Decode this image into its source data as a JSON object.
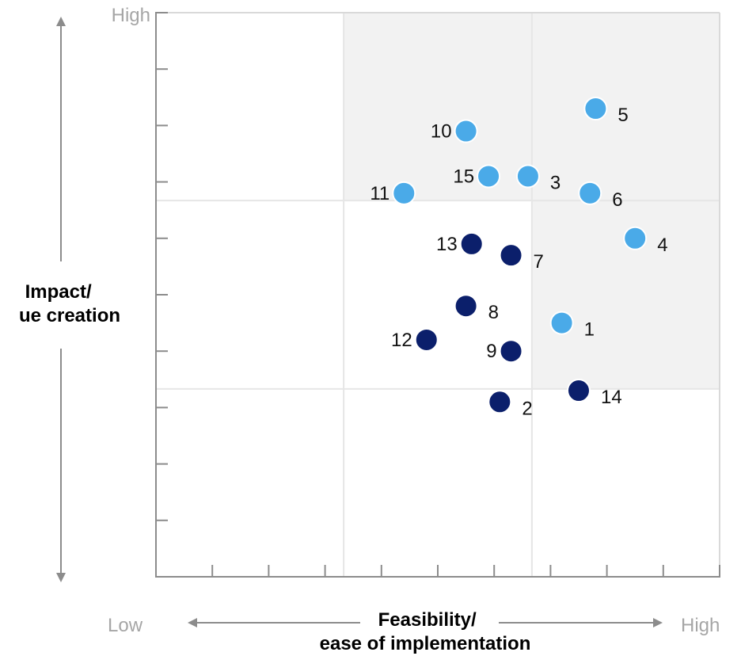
{
  "chart_data": {
    "type": "scatter",
    "xlabel": [
      "Feasibility/",
      "ease of implementation"
    ],
    "ylabel": [
      "Impact/",
      "ue creation"
    ],
    "x_low_label": "Low",
    "x_high_label": "High",
    "y_high_label": "High",
    "xlim": [
      0,
      10
    ],
    "ylim": [
      0,
      10
    ],
    "grid": true,
    "quadrant_dividers": {
      "x": [
        3.33,
        6.67
      ],
      "y": [
        3.33,
        6.67
      ]
    },
    "highlight_color": "#f2f2f2",
    "colors": {
      "light": "#4aaae8",
      "dark": "#0b1f6b"
    },
    "points": [
      {
        "label": "1",
        "x": 7.2,
        "y": 4.5,
        "group": "light"
      },
      {
        "label": "2",
        "x": 6.1,
        "y": 3.1,
        "group": "dark"
      },
      {
        "label": "3",
        "x": 6.6,
        "y": 7.1,
        "group": "light"
      },
      {
        "label": "4",
        "x": 8.5,
        "y": 6.0,
        "group": "light"
      },
      {
        "label": "5",
        "x": 7.8,
        "y": 8.3,
        "group": "light"
      },
      {
        "label": "6",
        "x": 7.7,
        "y": 6.8,
        "group": "light"
      },
      {
        "label": "7",
        "x": 6.3,
        "y": 5.7,
        "group": "dark"
      },
      {
        "label": "8",
        "x": 5.5,
        "y": 4.8,
        "group": "dark"
      },
      {
        "label": "9",
        "x": 6.3,
        "y": 4.0,
        "group": "dark"
      },
      {
        "label": "10",
        "x": 5.5,
        "y": 7.9,
        "group": "light"
      },
      {
        "label": "11",
        "x": 4.4,
        "y": 6.8,
        "group": "light"
      },
      {
        "label": "12",
        "x": 4.8,
        "y": 4.2,
        "group": "dark"
      },
      {
        "label": "13",
        "x": 5.6,
        "y": 5.9,
        "group": "dark"
      },
      {
        "label": "14",
        "x": 7.5,
        "y": 3.3,
        "group": "dark"
      },
      {
        "label": "15",
        "x": 5.9,
        "y": 7.1,
        "group": "light"
      }
    ]
  }
}
